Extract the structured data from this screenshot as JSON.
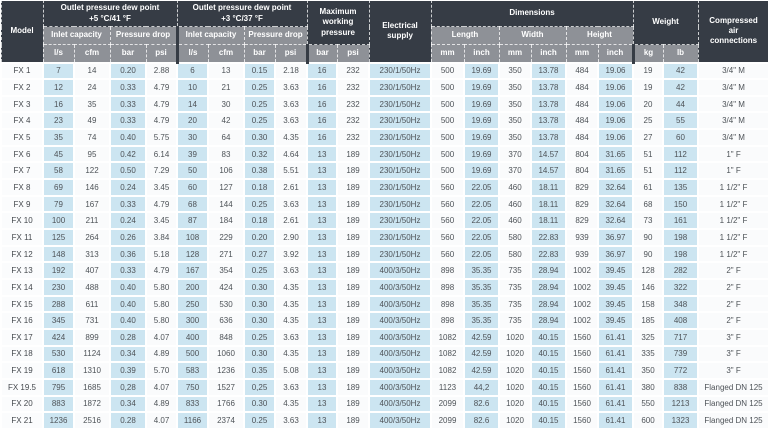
{
  "table": {
    "header": {
      "model": "Model",
      "dew5": "Outlet pressure dew point\n+5 °C/41 °F",
      "dew3": "Outlet pressure dew point\n+3 °C/37 °F",
      "max_pressure": "Maximum\nworking\npressure",
      "electrical": "Electrical\nsupply",
      "dimensions": "Dimensions",
      "weight": "Weight",
      "connections": "Compressed\nair\nconnections",
      "inlet_capacity": "Inlet capacity",
      "pressure_drop": "Pressure drop",
      "length": "Length",
      "width": "Width",
      "height": "Height",
      "units": {
        "ls": "l/s",
        "cfm": "cfm",
        "bar": "bar",
        "psi": "psi",
        "mm": "mm",
        "inch": "inch",
        "kg": "kg",
        "lb": "lb"
      }
    },
    "rows": [
      {
        "model": "FX 1",
        "values": [
          "7",
          "14",
          "0.20",
          "2.88",
          "6",
          "13",
          "0.15",
          "2.18",
          "16",
          "232",
          "230/1/50Hz",
          "500",
          "19.69",
          "350",
          "13.78",
          "484",
          "19.06",
          "19",
          "42",
          "3/4\" M"
        ]
      },
      {
        "model": "FX 2",
        "values": [
          "12",
          "24",
          "0.33",
          "4.79",
          "10",
          "21",
          "0.25",
          "3.63",
          "16",
          "232",
          "230/1/50Hz",
          "500",
          "19.69",
          "350",
          "13.78",
          "484",
          "19.06",
          "19",
          "42",
          "3/4\" M"
        ]
      },
      {
        "model": "FX 3",
        "values": [
          "16",
          "35",
          "0.33",
          "4.79",
          "14",
          "30",
          "0.25",
          "3.63",
          "16",
          "232",
          "230/1/50Hz",
          "500",
          "19.69",
          "350",
          "13.78",
          "484",
          "19.06",
          "20",
          "44",
          "3/4\" M"
        ]
      },
      {
        "model": "FX 4",
        "values": [
          "23",
          "49",
          "0.33",
          "4.79",
          "20",
          "42",
          "0.25",
          "3.63",
          "16",
          "232",
          "230/1/50Hz",
          "500",
          "19.69",
          "350",
          "13.78",
          "484",
          "19.06",
          "25",
          "55",
          "3/4\" M"
        ]
      },
      {
        "model": "FX 5",
        "values": [
          "35",
          "74",
          "0.40",
          "5.75",
          "30",
          "64",
          "0.30",
          "4.35",
          "16",
          "232",
          "230/1/50Hz",
          "500",
          "19.69",
          "350",
          "13.78",
          "484",
          "19.06",
          "27",
          "60",
          "3/4\" M"
        ]
      },
      {
        "model": "FX 6",
        "values": [
          "45",
          "95",
          "0.42",
          "6.14",
          "39",
          "83",
          "0.32",
          "4.64",
          "13",
          "189",
          "230/1/50Hz",
          "500",
          "19.69",
          "370",
          "14.57",
          "804",
          "31.65",
          "51",
          "112",
          "1\" F"
        ]
      },
      {
        "model": "FX 7",
        "values": [
          "58",
          "122",
          "0.50",
          "7.29",
          "50",
          "106",
          "0.38",
          "5.51",
          "13",
          "189",
          "230/1/50Hz",
          "500",
          "19.69",
          "370",
          "14.57",
          "804",
          "31.65",
          "51",
          "112",
          "1\" F"
        ]
      },
      {
        "model": "FX 8",
        "values": [
          "69",
          "146",
          "0.24",
          "3.45",
          "60",
          "127",
          "0.18",
          "2.61",
          "13",
          "189",
          "230/1/50Hz",
          "560",
          "22.05",
          "460",
          "18.11",
          "829",
          "32.64",
          "61",
          "135",
          "1 1/2\" F"
        ]
      },
      {
        "model": "FX 9",
        "values": [
          "79",
          "167",
          "0.33",
          "4.79",
          "68",
          "144",
          "0.25",
          "3.63",
          "13",
          "189",
          "230/1/50Hz",
          "560",
          "22.05",
          "460",
          "18.11",
          "829",
          "32.64",
          "68",
          "150",
          "1 1/2\" F"
        ]
      },
      {
        "model": "FX 10",
        "values": [
          "100",
          "211",
          "0.24",
          "3.45",
          "87",
          "184",
          "0.18",
          "2.61",
          "13",
          "189",
          "230/1/50Hz",
          "560",
          "22.05",
          "460",
          "18.11",
          "829",
          "32.64",
          "73",
          "161",
          "1 1/2\" F"
        ]
      },
      {
        "model": "FX 11",
        "values": [
          "125",
          "264",
          "0.26",
          "3.84",
          "108",
          "229",
          "0.20",
          "2.90",
          "13",
          "189",
          "230/1/50Hz",
          "560",
          "22.05",
          "580",
          "22.83",
          "939",
          "36.97",
          "90",
          "198",
          "1 1/2\" F"
        ]
      },
      {
        "model": "FX 12",
        "values": [
          "148",
          "313",
          "0.36",
          "5.18",
          "128",
          "271",
          "0.27",
          "3.92",
          "13",
          "189",
          "230/1/50Hz",
          "560",
          "22.05",
          "580",
          "22.83",
          "939",
          "36.97",
          "90",
          "198",
          "1 1/2\" F"
        ]
      },
      {
        "model": "FX 13",
        "values": [
          "192",
          "407",
          "0.33",
          "4.79",
          "167",
          "354",
          "0.25",
          "3.63",
          "13",
          "189",
          "400/3/50Hz",
          "898",
          "35.35",
          "735",
          "28.94",
          "1002",
          "39.45",
          "128",
          "282",
          "2\" F"
        ]
      },
      {
        "model": "FX 14",
        "values": [
          "230",
          "488",
          "0.40",
          "5.80",
          "200",
          "424",
          "0.30",
          "4.35",
          "13",
          "189",
          "400/3/50Hz",
          "898",
          "35.35",
          "735",
          "28.94",
          "1002",
          "39.45",
          "146",
          "322",
          "2\" F"
        ]
      },
      {
        "model": "FX 15",
        "values": [
          "288",
          "611",
          "0.40",
          "5.80",
          "250",
          "530",
          "0.30",
          "4.35",
          "13",
          "189",
          "400/3/50Hz",
          "898",
          "35.35",
          "735",
          "28.94",
          "1002",
          "39.45",
          "158",
          "348",
          "2\" F"
        ]
      },
      {
        "model": "FX 16",
        "values": [
          "345",
          "731",
          "0.40",
          "5.80",
          "300",
          "636",
          "0.30",
          "4.35",
          "13",
          "189",
          "400/3/50Hz",
          "898",
          "35.35",
          "735",
          "28.94",
          "1002",
          "39.45",
          "185",
          "408",
          "2\" F"
        ]
      },
      {
        "model": "FX 17",
        "values": [
          "424",
          "899",
          "0.28",
          "4.07",
          "400",
          "848",
          "0.25",
          "3.63",
          "13",
          "189",
          "400/3/50Hz",
          "1082",
          "42.59",
          "1020",
          "40.15",
          "1560",
          "61.41",
          "325",
          "717",
          "3\" F"
        ]
      },
      {
        "model": "FX 18",
        "values": [
          "530",
          "1124",
          "0.34",
          "4.89",
          "500",
          "1060",
          "0.30",
          "4.35",
          "13",
          "189",
          "400/3/50Hz",
          "1082",
          "42.59",
          "1020",
          "40.15",
          "1560",
          "61.41",
          "335",
          "739",
          "3\" F"
        ]
      },
      {
        "model": "FX 19",
        "values": [
          "618",
          "1310",
          "0.39",
          "5.70",
          "583",
          "1236",
          "0.35",
          "5.08",
          "13",
          "189",
          "400/3/50Hz",
          "1082",
          "42.59",
          "1020",
          "40.15",
          "1560",
          "61.41",
          "350",
          "772",
          "3\" F"
        ]
      },
      {
        "model": "FX 19.5",
        "values": [
          "795",
          "1685",
          "0,28",
          "4.07",
          "750",
          "1527",
          "0,25",
          "3.63",
          "13",
          "189",
          "400/3/50Hz",
          "1123",
          "44,2",
          "1020",
          "40.15",
          "1560",
          "61.41",
          "380",
          "838",
          "Flanged DN 125"
        ]
      },
      {
        "model": "FX 20",
        "values": [
          "883",
          "1872",
          "0.34",
          "4.89",
          "833",
          "1766",
          "0.30",
          "4.35",
          "13",
          "189",
          "400/3/50Hz",
          "2099",
          "82.6",
          "1020",
          "40.15",
          "1560",
          "61.41",
          "550",
          "1213",
          "Flanged DN 125"
        ]
      },
      {
        "model": "FX 21",
        "values": [
          "1236",
          "2516",
          "0.28",
          "4.07",
          "1166",
          "2374",
          "0.25",
          "3.63",
          "13",
          "189",
          "400/3/50Hz",
          "2099",
          "82.6",
          "1020",
          "40.15",
          "1560",
          "61.41",
          "600",
          "1323",
          "Flanged DN 125"
        ]
      }
    ]
  }
}
